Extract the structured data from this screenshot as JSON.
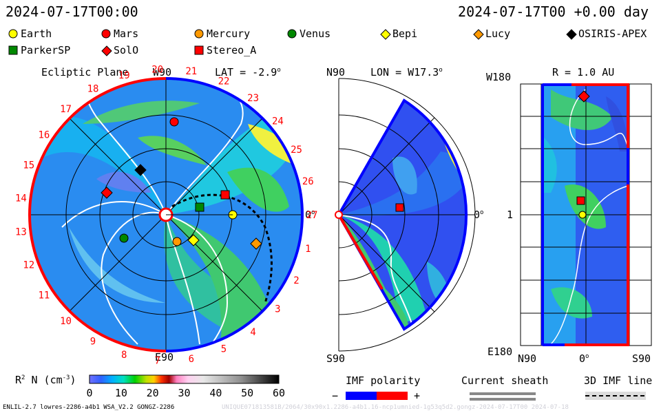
{
  "header": {
    "datetime_left": "2024-07-17T00:00",
    "datetime_right": "2024-07-17T00 +0.00 day"
  },
  "legend": [
    {
      "name": "Earth",
      "shape": "circle",
      "color": "#ffff00"
    },
    {
      "name": "Mars",
      "shape": "circle",
      "color": "#ff0000"
    },
    {
      "name": "Mercury",
      "shape": "circle",
      "color": "#ff9900"
    },
    {
      "name": "Venus",
      "shape": "circle",
      "color": "#008800"
    },
    {
      "name": "Bepi",
      "shape": "diamond",
      "color": "#ffff00"
    },
    {
      "name": "Lucy",
      "shape": "diamond",
      "color": "#ff9900"
    },
    {
      "name": "OSIRIS-APEX",
      "shape": "diamond",
      "color": "#000000"
    },
    {
      "name": "ParkerSP",
      "shape": "square",
      "color": "#008800"
    },
    {
      "name": "SolO",
      "shape": "diamond",
      "color": "#ff0000"
    },
    {
      "name": "Stereo_A",
      "shape": "square",
      "color": "#ff0000"
    }
  ],
  "panel_ecliptic": {
    "title": "Ecliptic Plane",
    "top_label": "W90",
    "bottom_label": "E90",
    "right_label": "0",
    "lat_label": "LAT = -2.9",
    "degree_mark": "o",
    "carrington_numbers": [
      "1",
      "2",
      "3",
      "4",
      "5",
      "6",
      "7",
      "8",
      "9",
      "10",
      "11",
      "12",
      "13",
      "14",
      "15",
      "16",
      "17",
      "18",
      "19",
      "20",
      "21",
      "22",
      "23",
      "24",
      "25",
      "26",
      "27"
    ]
  },
  "panel_meridional": {
    "top_label": "N90",
    "bottom_label": "S90",
    "lon_label": "LON = W17.3",
    "right_label": "0",
    "degree_mark": "o"
  },
  "panel_map": {
    "title": "R = 1.0 AU",
    "top_left": "W180",
    "bottom_left": "E180",
    "mid_left": "1",
    "x_left": "N90",
    "x_mid": "0",
    "x_right": "S90",
    "degree_mark": "o"
  },
  "colorbar": {
    "label": "R",
    "label_sup": "2",
    "label_rest": " N (cm",
    "label_exp": "-3",
    "label_close": ")",
    "ticks": [
      "0",
      "10",
      "20",
      "30",
      "40",
      "50",
      "60"
    ],
    "range": [
      0,
      60
    ]
  },
  "imf_legend": {
    "title": "IMF polarity",
    "minus": "−",
    "plus": "+",
    "neg_color": "#0000ff",
    "pos_color": "#ff0000"
  },
  "sheath_legend": {
    "title": "Current sheath"
  },
  "imf3d_legend": {
    "title": "3D IMF line"
  },
  "footer": {
    "left": "ENLIL-2.7 lowres-2286-a4b1 WSA_V2.2 GONGZ-2286",
    "right": "UNIQUE071813581B/2064/30x90x1.2286-a4b1.16-ncp1umnied-1g53q5d2.gongz-2024-07-17T00   2024-07-18"
  }
}
